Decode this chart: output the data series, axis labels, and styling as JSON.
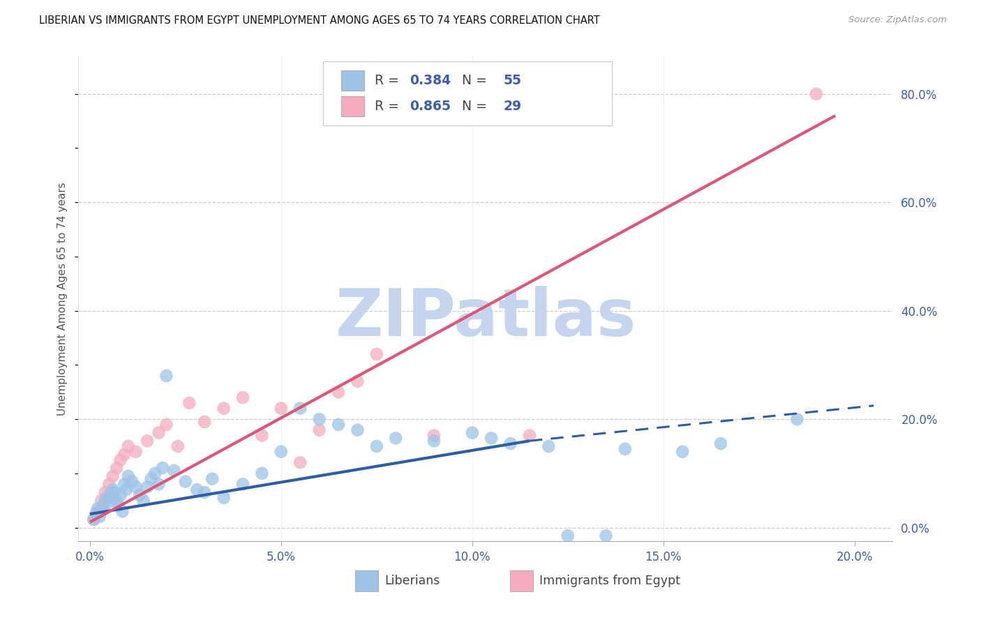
{
  "title": "LIBERIAN VS IMMIGRANTS FROM EGYPT UNEMPLOYMENT AMONG AGES 65 TO 74 YEARS CORRELATION CHART",
  "source": "Source: ZipAtlas.com",
  "ylabel": "Unemployment Among Ages 65 to 74 years",
  "x_tick_labels": [
    "0.0%",
    "5.0%",
    "10.0%",
    "15.0%",
    "20.0%"
  ],
  "x_tick_vals": [
    0.0,
    5.0,
    10.0,
    15.0,
    20.0
  ],
  "y_right_labels": [
    "0.0%",
    "20.0%",
    "40.0%",
    "60.0%",
    "80.0%"
  ],
  "y_right_vals": [
    0.0,
    20.0,
    40.0,
    60.0,
    80.0
  ],
  "xmin": -0.3,
  "xmax": 21.0,
  "ymin": -2.5,
  "ymax": 87.0,
  "blue_R": "0.384",
  "blue_N": "55",
  "pink_R": "0.865",
  "pink_N": "29",
  "blue_scatter_x": [
    0.1,
    0.15,
    0.2,
    0.25,
    0.3,
    0.35,
    0.4,
    0.45,
    0.5,
    0.55,
    0.6,
    0.65,
    0.7,
    0.75,
    0.8,
    0.85,
    0.9,
    0.95,
    1.0,
    1.1,
    1.2,
    1.3,
    1.4,
    1.5,
    1.6,
    1.7,
    1.8,
    1.9,
    2.0,
    2.2,
    2.5,
    2.8,
    3.0,
    3.2,
    3.5,
    4.0,
    4.5,
    5.0,
    5.5,
    6.0,
    6.5,
    7.0,
    7.5,
    8.0,
    9.0,
    10.0,
    10.5,
    11.0,
    12.0,
    12.5,
    13.5,
    14.0,
    15.5,
    16.5,
    18.5
  ],
  "blue_scatter_y": [
    1.5,
    2.5,
    3.5,
    2.0,
    3.0,
    4.0,
    5.0,
    4.5,
    6.0,
    5.5,
    7.0,
    6.5,
    5.0,
    4.0,
    6.0,
    3.0,
    8.0,
    7.0,
    9.5,
    8.5,
    7.5,
    6.0,
    5.0,
    7.5,
    9.0,
    10.0,
    8.0,
    11.0,
    28.0,
    10.5,
    8.5,
    7.0,
    6.5,
    9.0,
    5.5,
    8.0,
    10.0,
    14.0,
    22.0,
    20.0,
    19.0,
    18.0,
    15.0,
    16.5,
    16.0,
    17.5,
    16.5,
    15.5,
    15.0,
    -1.5,
    -1.5,
    14.5,
    14.0,
    15.5,
    20.0
  ],
  "pink_scatter_x": [
    0.1,
    0.2,
    0.3,
    0.4,
    0.5,
    0.6,
    0.7,
    0.8,
    0.9,
    1.0,
    1.2,
    1.5,
    1.8,
    2.0,
    2.3,
    2.6,
    3.0,
    3.5,
    4.0,
    4.5,
    5.0,
    5.5,
    6.0,
    6.5,
    7.0,
    7.5,
    9.0,
    11.5,
    19.0
  ],
  "pink_scatter_y": [
    1.5,
    3.0,
    5.0,
    6.5,
    8.0,
    9.5,
    11.0,
    12.5,
    13.5,
    15.0,
    14.0,
    16.0,
    17.5,
    19.0,
    15.0,
    23.0,
    19.5,
    22.0,
    24.0,
    17.0,
    22.0,
    12.0,
    18.0,
    25.0,
    27.0,
    32.0,
    17.0,
    17.0,
    80.0
  ],
  "blue_line_x1": 0.0,
  "blue_line_y1": 2.5,
  "blue_line_x2": 11.5,
  "blue_line_y2": 16.0,
  "blue_dash_x1": 11.5,
  "blue_dash_y1": 16.0,
  "blue_dash_x2": 20.5,
  "blue_dash_y2": 22.5,
  "pink_line_x1": 0.0,
  "pink_line_y1": 1.0,
  "pink_line_x2": 19.5,
  "pink_line_y2": 76.0,
  "blue_dot_color": "#9dc3e6",
  "blue_line_color": "#2e5fa3",
  "pink_dot_color": "#f4acbe",
  "pink_line_color": "#e05575",
  "watermark_text": "ZIPatlas",
  "watermark_color_zip": "#c5d5ee",
  "watermark_color_atlas": "#a8c0e8",
  "legend_label_blue": "Liberians",
  "legend_label_pink": "Immigrants from Egypt"
}
